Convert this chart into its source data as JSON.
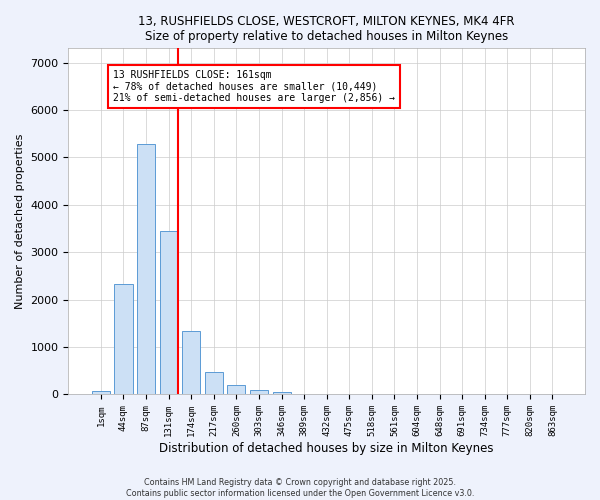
{
  "title1": "13, RUSHFIELDS CLOSE, WESTCROFT, MILTON KEYNES, MK4 4FR",
  "title2": "Size of property relative to detached houses in Milton Keynes",
  "xlabel": "Distribution of detached houses by size in Milton Keynes",
  "ylabel": "Number of detached properties",
  "bar_labels": [
    "1sqm",
    "44sqm",
    "87sqm",
    "131sqm",
    "174sqm",
    "217sqm",
    "260sqm",
    "303sqm",
    "346sqm",
    "389sqm",
    "432sqm",
    "475sqm",
    "518sqm",
    "561sqm",
    "604sqm",
    "648sqm",
    "691sqm",
    "734sqm",
    "777sqm",
    "820sqm",
    "863sqm"
  ],
  "bar_values": [
    80,
    2330,
    5280,
    3450,
    1330,
    470,
    190,
    90,
    50,
    0,
    0,
    0,
    0,
    0,
    0,
    0,
    0,
    0,
    0,
    0,
    0
  ],
  "bar_color": "#cce0f5",
  "bar_edge_color": "#5b9bd5",
  "vline_color": "red",
  "annotation_text": "13 RUSHFIELDS CLOSE: 161sqm\n← 78% of detached houses are smaller (10,449)\n21% of semi-detached houses are larger (2,856) →",
  "annotation_box_color": "white",
  "annotation_box_edge": "red",
  "ylim": [
    0,
    7300
  ],
  "yticks": [
    0,
    1000,
    2000,
    3000,
    4000,
    5000,
    6000,
    7000
  ],
  "footer1": "Contains HM Land Registry data © Crown copyright and database right 2025.",
  "footer2": "Contains public sector information licensed under the Open Government Licence v3.0.",
  "bg_color": "#eef2fc",
  "plot_bg_color": "white",
  "grid_color": "#cccccc"
}
